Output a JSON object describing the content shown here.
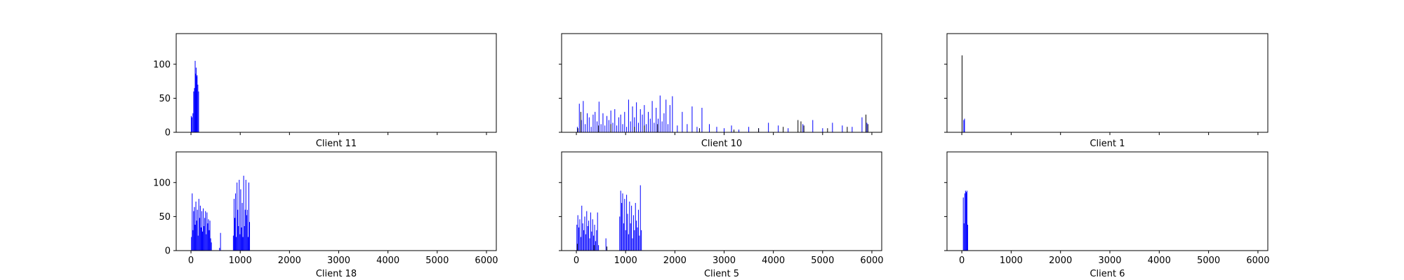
{
  "figure": {
    "background": "#ffffff",
    "bar_color_primary": "#0000ff",
    "bar_color_secondary": "#000000",
    "frame_color": "#000000"
  },
  "chart_data": [
    {
      "type": "bar",
      "title": "",
      "xlabel": "Client 11",
      "ylabel": "",
      "xlim": [
        -300,
        6200
      ],
      "ylim": [
        0,
        145
      ],
      "xticks": [
        0,
        1000,
        2000,
        3000,
        4000,
        5000,
        6000
      ],
      "yticks": [
        0,
        50,
        100
      ],
      "show_xtick_labels": false,
      "show_ytick_labels": true,
      "grid": false,
      "series": [
        {
          "color": "#0000ff",
          "x": [
            5,
            20,
            40,
            55,
            70,
            85,
            95,
            105,
            115,
            125,
            140,
            155
          ],
          "values": [
            24,
            22,
            28,
            60,
            65,
            105,
            86,
            95,
            82,
            84,
            70,
            60
          ]
        }
      ]
    },
    {
      "type": "bar",
      "title": "",
      "xlabel": "Client 10",
      "ylabel": "",
      "xlim": [
        -300,
        6200
      ],
      "ylim": [
        0,
        145
      ],
      "xticks": [
        0,
        1000,
        2000,
        3000,
        4000,
        5000,
        6000
      ],
      "yticks": [
        0,
        50,
        100
      ],
      "show_xtick_labels": false,
      "show_ytick_labels": false,
      "grid": false,
      "series": [
        {
          "color": "#0000ff",
          "x": [
            20,
            60,
            100,
            140,
            180,
            220,
            260,
            300,
            340,
            380,
            420,
            460,
            500,
            540,
            580,
            620,
            660,
            700,
            740,
            780,
            820,
            860,
            900,
            940,
            980,
            1020,
            1060,
            1100,
            1140,
            1180,
            1220,
            1260,
            1300,
            1340,
            1380,
            1420,
            1460,
            1500,
            1540,
            1580,
            1620,
            1660,
            1700,
            1740,
            1780,
            1820,
            1860,
            1900,
            1950,
            2050,
            2150,
            2250,
            2350,
            2450,
            2550,
            2700,
            2850,
            3000,
            3150,
            3300,
            3500,
            3700,
            3900,
            4100,
            4300,
            4600,
            4800,
            5000,
            5200,
            5400,
            5600,
            5800,
            5900
          ],
          "values": [
            8,
            42,
            18,
            46,
            12,
            28,
            22,
            8,
            26,
            30,
            16,
            45,
            12,
            28,
            10,
            24,
            18,
            32,
            14,
            34,
            10,
            22,
            26,
            12,
            30,
            8,
            48,
            16,
            38,
            22,
            44,
            14,
            34,
            26,
            40,
            12,
            30,
            20,
            46,
            14,
            36,
            20,
            54,
            16,
            28,
            48,
            12,
            40,
            53,
            10,
            30,
            12,
            38,
            8,
            36,
            12,
            8,
            6,
            10,
            4,
            8,
            6,
            14,
            10,
            6,
            12,
            18,
            6,
            14,
            10,
            8,
            22,
            14
          ]
        },
        {
          "color": "#000000",
          "x": [
            30,
            90,
            450,
            700,
            1180,
            1380,
            1650,
            2500,
            3200,
            3700,
            4200,
            4500,
            4560,
            4620,
            5100,
            5500,
            5880,
            5920
          ],
          "values": [
            6,
            30,
            10,
            12,
            8,
            10,
            12,
            6,
            4,
            6,
            8,
            18,
            16,
            10,
            6,
            8,
            26,
            12
          ]
        }
      ]
    },
    {
      "type": "bar",
      "title": "",
      "xlabel": "Client 1",
      "ylabel": "",
      "xlim": [
        -300,
        6200
      ],
      "ylim": [
        0,
        145
      ],
      "xticks": [
        0,
        1000,
        2000,
        3000,
        4000,
        5000,
        6000
      ],
      "yticks": [
        0,
        50,
        100
      ],
      "show_xtick_labels": false,
      "show_ytick_labels": false,
      "grid": false,
      "series": [
        {
          "color": "#000000",
          "x": [
            5
          ],
          "values": [
            113
          ]
        },
        {
          "color": "#0000ff",
          "x": [
            40,
            55
          ],
          "values": [
            18,
            20
          ]
        }
      ]
    },
    {
      "type": "bar",
      "title": "",
      "xlabel": "Client 18",
      "ylabel": "",
      "xlim": [
        -300,
        6200
      ],
      "ylim": [
        0,
        145
      ],
      "xticks": [
        0,
        1000,
        2000,
        3000,
        4000,
        5000,
        6000
      ],
      "yticks": [
        0,
        50,
        100
      ],
      "show_xtick_labels": true,
      "show_ytick_labels": true,
      "grid": false,
      "series": [
        {
          "color": "#0000ff",
          "x": [
            10,
            25,
            40,
            55,
            70,
            85,
            100,
            115,
            130,
            145,
            160,
            175,
            190,
            205,
            220,
            235,
            250,
            265,
            280,
            295,
            310,
            325,
            340,
            355,
            370,
            385,
            400,
            415,
            580,
            600,
            860,
            875,
            890,
            905,
            920,
            935,
            950,
            965,
            980,
            995,
            1010,
            1025,
            1040,
            1055,
            1070,
            1085,
            1100,
            1115,
            1130,
            1145,
            1160,
            1175,
            1190
          ],
          "values": [
            20,
            84,
            30,
            58,
            64,
            38,
            72,
            44,
            60,
            22,
            76,
            48,
            66,
            34,
            58,
            28,
            62,
            36,
            48,
            58,
            24,
            56,
            40,
            46,
            30,
            44,
            18,
            12,
            4,
            26,
            22,
            76,
            48,
            84,
            20,
            100,
            60,
            36,
            104,
            24,
            90,
            34,
            70,
            20,
            110,
            36,
            60,
            104,
            52,
            60,
            20,
            100,
            42
          ]
        }
      ]
    },
    {
      "type": "bar",
      "title": "",
      "xlabel": "Client 5",
      "ylabel": "",
      "xlim": [
        -300,
        6200
      ],
      "ylim": [
        0,
        145
      ],
      "xticks": [
        0,
        1000,
        2000,
        3000,
        4000,
        5000,
        6000
      ],
      "yticks": [
        0,
        50,
        100
      ],
      "show_xtick_labels": true,
      "show_ytick_labels": false,
      "grid": false,
      "series": [
        {
          "color": "#0000ff",
          "x": [
            10,
            30,
            50,
            70,
            90,
            110,
            130,
            150,
            170,
            190,
            210,
            230,
            250,
            270,
            290,
            310,
            330,
            350,
            370,
            390,
            410,
            430,
            450,
            600,
            880,
            900,
            920,
            940,
            960,
            980,
            1000,
            1020,
            1040,
            1060,
            1080,
            1100,
            1120,
            1140,
            1160,
            1180,
            1200,
            1220,
            1240,
            1260,
            1280,
            1300,
            1320
          ],
          "values": [
            38,
            52,
            34,
            46,
            20,
            66,
            40,
            30,
            50,
            24,
            58,
            36,
            44,
            18,
            56,
            28,
            46,
            22,
            38,
            14,
            30,
            56,
            8,
            18,
            50,
            88,
            70,
            84,
            40,
            76,
            30,
            82,
            54,
            24,
            72,
            40,
            66,
            18,
            52,
            30,
            70,
            44,
            34,
            60,
            22,
            96,
            30
          ]
        },
        {
          "color": "#000000",
          "x": [
            20,
            360,
            620
          ],
          "values": [
            10,
            8,
            6
          ]
        }
      ]
    },
    {
      "type": "bar",
      "title": "",
      "xlabel": "Client 6",
      "ylabel": "",
      "xlim": [
        -300,
        6200
      ],
      "ylim": [
        0,
        145
      ],
      "xticks": [
        0,
        1000,
        2000,
        3000,
        4000,
        5000,
        6000
      ],
      "yticks": [
        0,
        50,
        100
      ],
      "show_xtick_labels": true,
      "show_ytick_labels": false,
      "grid": false,
      "series": [
        {
          "color": "#0000ff",
          "x": [
            30,
            45,
            60,
            75,
            90,
            105,
            120
          ],
          "values": [
            78,
            40,
            84,
            88,
            86,
            88,
            38
          ]
        }
      ]
    }
  ]
}
